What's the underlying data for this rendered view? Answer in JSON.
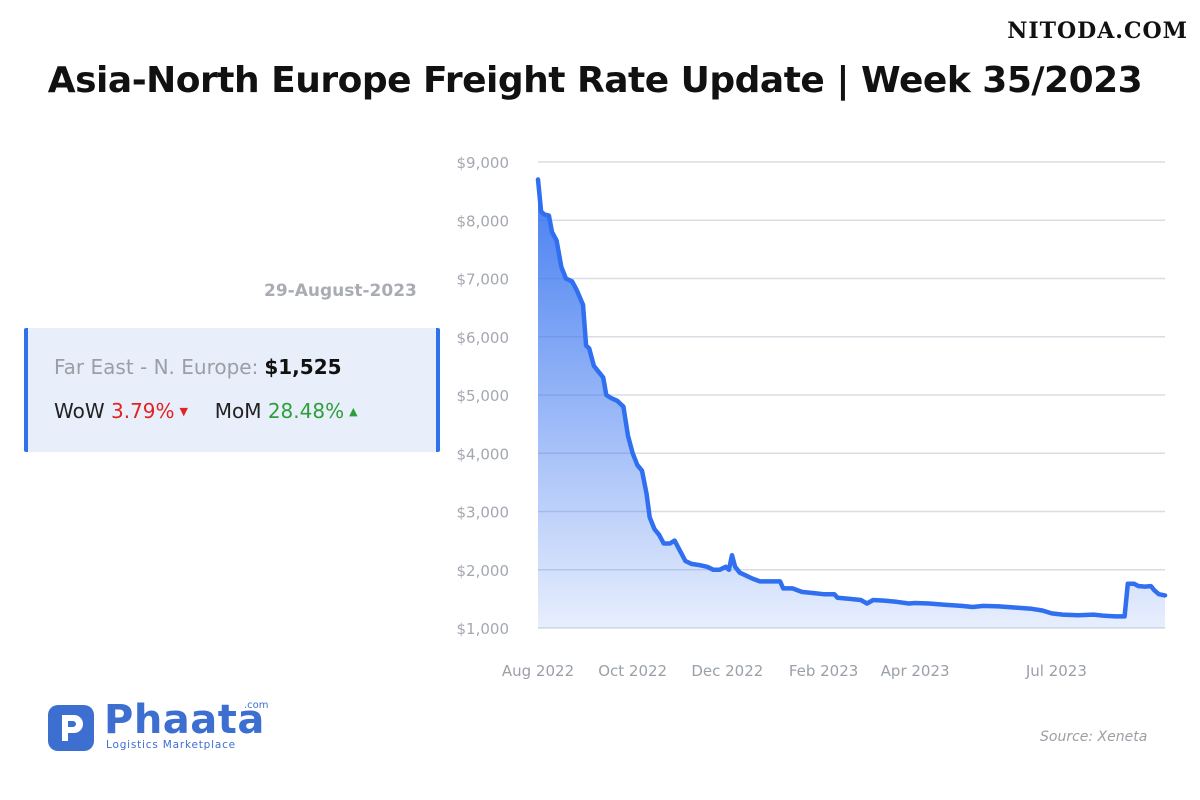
{
  "watermark": "NITODA.COM",
  "title": "Asia-North Europe Freight Rate Update | Week 35/2023",
  "date": "29-August-2023",
  "card": {
    "route_label": "Far East - N. Europe:",
    "route_value": "$1,525",
    "wow_label": "WoW",
    "wow_value": "3.79%",
    "wow_direction": "down",
    "mom_label": "MoM",
    "mom_value": "28.48%",
    "mom_direction": "up",
    "colors": {
      "down": "#e02424",
      "up": "#2e9e3a",
      "accent": "#2f73e8"
    }
  },
  "logo": {
    "name": "Phaata",
    "suffix": ".com",
    "tagline": "Logistics Marketplace"
  },
  "source": "Source: Xeneta",
  "chart_data": {
    "type": "area",
    "series": [
      {
        "name": "Far East - N. Europe",
        "color": "#2f6ff0",
        "points": [
          [
            "2022-08-01",
            8700
          ],
          [
            "2022-08-03",
            8150
          ],
          [
            "2022-08-05",
            8100
          ],
          [
            "2022-08-08",
            8080
          ],
          [
            "2022-08-10",
            7800
          ],
          [
            "2022-08-13",
            7650
          ],
          [
            "2022-08-16",
            7200
          ],
          [
            "2022-08-19",
            7000
          ],
          [
            "2022-08-23",
            6950
          ],
          [
            "2022-08-26",
            6800
          ],
          [
            "2022-08-30",
            6550
          ],
          [
            "2022-09-01",
            5850
          ],
          [
            "2022-09-03",
            5800
          ],
          [
            "2022-09-06",
            5500
          ],
          [
            "2022-09-09",
            5400
          ],
          [
            "2022-09-12",
            5300
          ],
          [
            "2022-09-14",
            5000
          ],
          [
            "2022-09-17",
            4950
          ],
          [
            "2022-09-21",
            4900
          ],
          [
            "2022-09-25",
            4800
          ],
          [
            "2022-09-28",
            4300
          ],
          [
            "2022-10-01",
            4000
          ],
          [
            "2022-10-04",
            3800
          ],
          [
            "2022-10-07",
            3700
          ],
          [
            "2022-10-10",
            3300
          ],
          [
            "2022-10-12",
            2900
          ],
          [
            "2022-10-15",
            2700
          ],
          [
            "2022-10-18",
            2600
          ],
          [
            "2022-10-21",
            2450
          ],
          [
            "2022-10-25",
            2450
          ],
          [
            "2022-10-28",
            2500
          ],
          [
            "2022-11-01",
            2300
          ],
          [
            "2022-11-04",
            2150
          ],
          [
            "2022-11-08",
            2100
          ],
          [
            "2022-11-13",
            2080
          ],
          [
            "2022-11-18",
            2050
          ],
          [
            "2022-11-22",
            2000
          ],
          [
            "2022-11-26",
            2000
          ],
          [
            "2022-11-30",
            2050
          ],
          [
            "2022-12-02",
            2000
          ],
          [
            "2022-12-04",
            2250
          ],
          [
            "2022-12-06",
            2050
          ],
          [
            "2022-12-09",
            1950
          ],
          [
            "2022-12-13",
            1900
          ],
          [
            "2022-12-17",
            1850
          ],
          [
            "2022-12-22",
            1800
          ],
          [
            "2022-12-28",
            1800
          ],
          [
            "2023-01-04",
            1800
          ],
          [
            "2023-01-06",
            1680
          ],
          [
            "2023-01-12",
            1680
          ],
          [
            "2023-01-18",
            1620
          ],
          [
            "2023-01-25",
            1600
          ],
          [
            "2023-02-01",
            1580
          ],
          [
            "2023-02-08",
            1580
          ],
          [
            "2023-02-10",
            1520
          ],
          [
            "2023-02-18",
            1500
          ],
          [
            "2023-02-25",
            1480
          ],
          [
            "2023-03-01",
            1420
          ],
          [
            "2023-03-05",
            1480
          ],
          [
            "2023-03-12",
            1470
          ],
          [
            "2023-03-20",
            1450
          ],
          [
            "2023-03-28",
            1420
          ],
          [
            "2023-04-01",
            1430
          ],
          [
            "2023-04-10",
            1420
          ],
          [
            "2023-04-20",
            1400
          ],
          [
            "2023-05-01",
            1380
          ],
          [
            "2023-05-08",
            1360
          ],
          [
            "2023-05-15",
            1380
          ],
          [
            "2023-05-25",
            1370
          ],
          [
            "2023-06-05",
            1350
          ],
          [
            "2023-06-15",
            1330
          ],
          [
            "2023-06-22",
            1300
          ],
          [
            "2023-06-28",
            1250
          ],
          [
            "2023-07-05",
            1230
          ],
          [
            "2023-07-15",
            1220
          ],
          [
            "2023-07-25",
            1230
          ],
          [
            "2023-08-01",
            1210
          ],
          [
            "2023-08-08",
            1200
          ],
          [
            "2023-08-14",
            1200
          ],
          [
            "2023-08-16",
            1760
          ],
          [
            "2023-08-20",
            1760
          ],
          [
            "2023-08-23",
            1720
          ],
          [
            "2023-08-27",
            1710
          ],
          [
            "2023-08-31",
            1720
          ],
          [
            "2023-09-02",
            1650
          ],
          [
            "2023-09-05",
            1580
          ],
          [
            "2023-09-09",
            1560
          ]
        ]
      }
    ],
    "yaxis": {
      "min": 1000,
      "max": 9000,
      "ticks": [
        "$1,000",
        "$2,000",
        "$3,000",
        "$4,000",
        "$5,000",
        "$6,000",
        "$7,000",
        "$8,000",
        "$9,000"
      ]
    },
    "xaxis": {
      "range": [
        "2022-08-01",
        "2023-09-09"
      ],
      "ticks": [
        {
          "date": "2022-08-01",
          "label": "Aug 2022"
        },
        {
          "date": "2022-10-01",
          "label": "Oct 2022"
        },
        {
          "date": "2022-12-01",
          "label": "Dec 2022"
        },
        {
          "date": "2023-02-01",
          "label": "Feb 2023"
        },
        {
          "date": "2023-04-01",
          "label": "Apr 2023"
        },
        {
          "date": "2023-07-01",
          "label": "Jul 2023"
        }
      ]
    },
    "grid": true,
    "legend": "none"
  }
}
